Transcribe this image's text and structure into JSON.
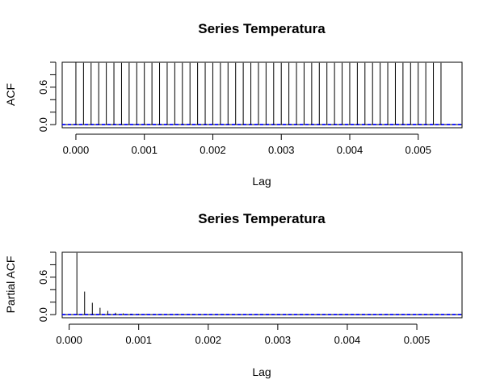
{
  "chart_data": [
    {
      "type": "bar",
      "title": "Series  Temperatura",
      "xlabel": "Lag",
      "ylabel": "ACF",
      "xlim": [
        -0.0002,
        0.00564
      ],
      "ylim": [
        -0.05,
        1.0
      ],
      "x_ticks": [
        "0.000",
        "0.001",
        "0.002",
        "0.003",
        "0.004",
        "0.005"
      ],
      "y_tick_labels": [
        "0.0",
        "0.6"
      ],
      "lag_step": 0.0001111,
      "values": [
        1.0,
        0.99,
        0.99,
        0.99,
        0.99,
        0.99,
        0.99,
        0.99,
        0.99,
        0.99,
        0.99,
        0.99,
        0.99,
        0.99,
        0.99,
        0.99,
        0.99,
        0.99,
        0.99,
        0.99,
        0.99,
        0.99,
        0.99,
        0.99,
        0.99,
        0.99,
        0.99,
        0.99,
        0.99,
        0.99,
        0.99,
        0.99,
        0.99,
        0.99,
        0.99,
        0.99,
        0.99,
        0.99,
        0.99,
        0.99,
        0.99,
        0.99,
        0.99,
        0.99,
        0.99,
        0.99,
        0.99,
        0.99,
        0.99
      ],
      "ci": 0.005,
      "colors": {
        "bars": "#000000",
        "ci": "#0000ff"
      }
    },
    {
      "type": "bar",
      "title": "Series  Temperatura",
      "xlabel": "Lag",
      "ylabel": "Partial ACF",
      "xlim": [
        -0.0001,
        0.00565
      ],
      "ylim": [
        -0.05,
        1.0
      ],
      "x_ticks": [
        "0.000",
        "0.001",
        "0.002",
        "0.003",
        "0.004",
        "0.005"
      ],
      "y_tick_labels": [
        "0.0",
        "0.6"
      ],
      "lag_step": 0.0001111,
      "values": [
        0.99,
        0.37,
        0.19,
        0.11,
        0.06,
        0.03,
        0.02,
        0.015,
        0.01,
        0.01,
        0.008,
        0.008,
        0.006,
        0.006,
        0.005,
        0.005,
        0.004,
        0.004,
        0.004,
        0.004,
        0.003,
        0.003,
        0.003,
        0.003,
        0.003,
        0.003,
        0.003,
        0.003,
        0.003,
        0.003,
        0.003,
        0.003,
        0.003,
        0.003,
        0.003,
        0.003,
        0.003,
        0.003,
        0.003,
        0.003,
        0.003,
        0.003,
        0.003,
        0.003,
        0.003,
        0.003,
        0.003,
        0.003,
        0.003
      ],
      "ci": 0.005,
      "colors": {
        "bars": "#000000",
        "ci": "#0000ff"
      }
    }
  ]
}
